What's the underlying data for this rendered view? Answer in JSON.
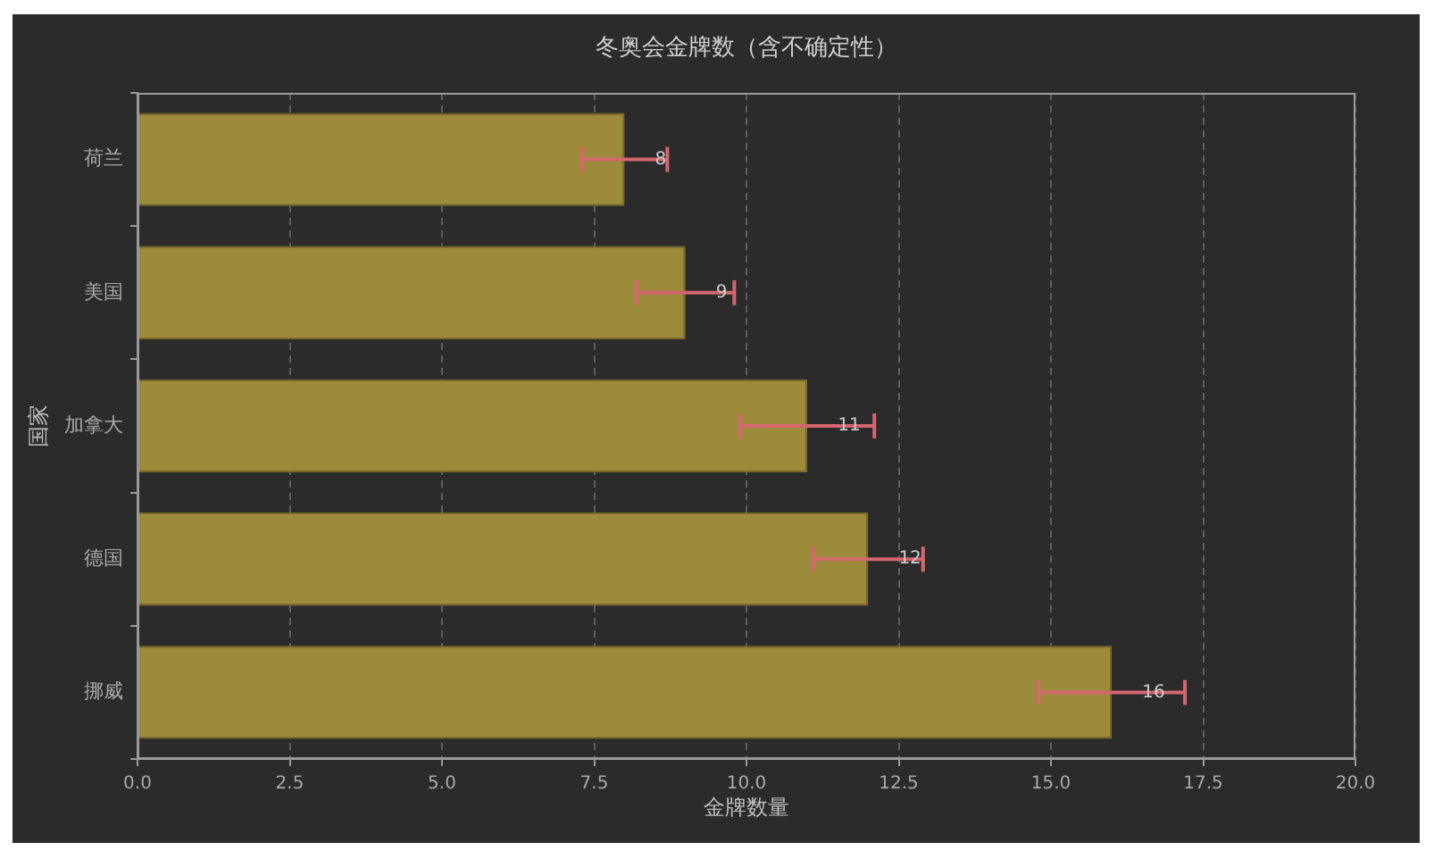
{
  "chart_data": {
    "type": "bar",
    "title": "冬奥会金牌数（含不确定性）",
    "xlabel": "金牌数量",
    "ylabel": "国家",
    "orientation": "horizontal",
    "categories": [
      "荷兰",
      "美国",
      "加拿大",
      "德国",
      "挪威"
    ],
    "values": [
      8,
      9,
      11,
      12,
      16
    ],
    "errors": [
      0.7,
      0.8,
      1.1,
      0.9,
      1.2
    ],
    "color": "#9c8b3b",
    "xlim": [
      0,
      20
    ],
    "xticks": [
      {
        "value": 0,
        "label": "0.0"
      },
      2.5,
      {
        "value": 5,
        "label": "5.0"
      },
      7.5,
      {
        "value": 10,
        "label": "10.0"
      },
      12.5,
      {
        "value": 15,
        "label": "15.0"
      },
      17.5,
      {
        "value": 20,
        "label": "20.0"
      }
    ],
    "grid": "x",
    "data_labels": true
  }
}
